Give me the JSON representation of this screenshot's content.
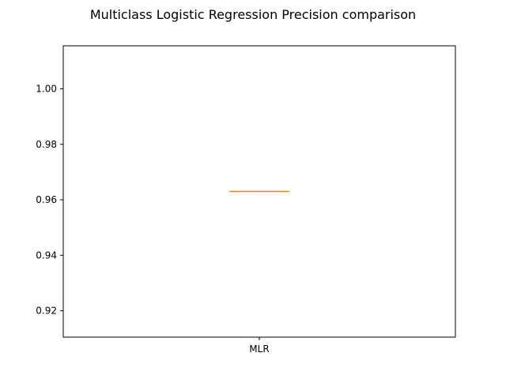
{
  "chart_data": {
    "type": "box",
    "title": "Multiclass Logistic Regression Precision comparison",
    "xlabel": "",
    "ylabel": "",
    "categories": [
      "MLR"
    ],
    "boxes": [
      {
        "name": "MLR",
        "min": 0.963,
        "q1": 0.963,
        "median": 0.963,
        "q3": 0.963,
        "max": 0.963
      }
    ],
    "ylim": [
      0.9105,
      1.0155
    ],
    "yticks": [
      0.92,
      0.94,
      0.96,
      0.98,
      1.0
    ],
    "ytick_labels": [
      "0.92",
      "0.94",
      "0.96",
      "0.98",
      "1.00"
    ],
    "grid": false,
    "colors": {
      "box": "#000000",
      "median": "#ff7f0e"
    }
  }
}
